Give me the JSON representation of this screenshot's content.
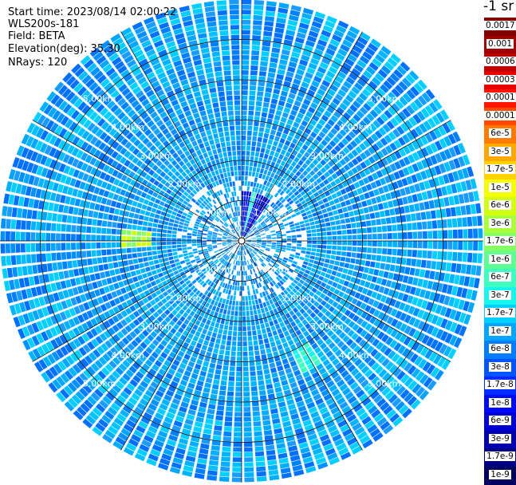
{
  "header": {
    "start_time": "Start time: 2023/08/14 02:00:22",
    "instrument": "WLS200s-181",
    "field": "Field: BETA",
    "elevation": "Elevation(deg): 35.30",
    "nrays": "NRays: 120"
  },
  "colorbar": {
    "title": "-1 sr",
    "labels": [
      "0.0017",
      "0.001",
      "0.0006",
      "0.0003",
      "0.00017",
      "0.0001",
      "6e-5",
      "3e-5",
      "1.7e-5",
      "1e-5",
      "6e-6",
      "3e-6",
      "1.7e-6",
      "1e-6",
      "6e-7",
      "3e-7",
      "1.7e-7",
      "1e-7",
      "6e-8",
      "3e-8",
      "1.7e-8",
      "1e-8",
      "6e-9",
      "3e-9",
      "1.7e-9",
      "1e-9"
    ],
    "colors": [
      "#800000",
      "#a00000",
      "#c40000",
      "#e60000",
      "#ff1500",
      "#ff4a00",
      "#ff7a00",
      "#ffa800",
      "#ffd200",
      "#f6ff00",
      "#d2ff10",
      "#aaff3c",
      "#84ff66",
      "#60ff92",
      "#3cffc0",
      "#14f6ee",
      "#00cfff",
      "#00a6ff",
      "#007cff",
      "#0054ff",
      "#002cff",
      "#0008f8",
      "#0000d4",
      "#0000ac",
      "#000084",
      "#00005e"
    ]
  },
  "chart_data": {
    "type": "heatmap",
    "projection": "polar PPI scan",
    "field": "BETA",
    "elevation_deg": 35.3,
    "nrays": 120,
    "range_rings_km": [
      1.0,
      2.0,
      3.0,
      4.0,
      5.0
    ],
    "ring_labels": [
      "1.00km",
      "2.00km",
      "3.00km",
      "4.00km",
      "5.00km"
    ],
    "max_range_km": 6.0,
    "spoke_interval_deg": 30,
    "background_level": "1e-8",
    "features": [
      {
        "description": "high backscatter streak",
        "azimuth_deg": 271,
        "range_km_start": 2.3,
        "range_km_end": 3.0,
        "peak_value": "1.7e-6"
      },
      {
        "description": "moderate backscatter streak",
        "azimuth_deg": 152,
        "range_km_start": 3.0,
        "range_km_end": 3.6,
        "peak_value": "1e-7"
      },
      {
        "description": "low values near center",
        "azimuth_deg": 15,
        "range_km_start": 0.2,
        "range_km_end": 1.2,
        "peak_value": "3e-9"
      }
    ]
  }
}
